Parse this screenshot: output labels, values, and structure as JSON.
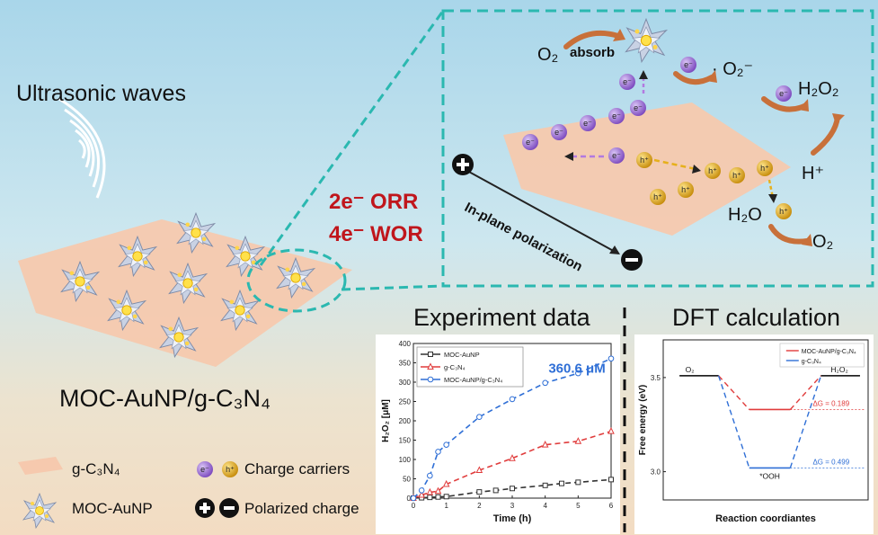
{
  "labels": {
    "ultrasonic": "Ultrasonic waves",
    "orr": "2e⁻ ORR",
    "wor": "4e⁻ WOR",
    "catalyst_name": "MOC-AuNP/g-C₃N₄",
    "o2": "O₂",
    "absorb": "absorb",
    "superoxide": "· O₂⁻",
    "h2o2": "H₂O₂",
    "h_plus": "H⁺",
    "h2o": "H₂O",
    "o2_out": "O₂",
    "polarization": "In-plane polarization",
    "electron": "e⁻",
    "hole": "h⁺"
  },
  "legend": {
    "gcn": "g-C₃N₄",
    "moc": "MOC-AuNP",
    "carriers": "Charge carriers",
    "polarized": "Polarized charge"
  },
  "colors": {
    "accent_red": "#c0161c",
    "teal_dash": "#2bb8b0",
    "electron": "#8a5bc7",
    "hole": "#d19a16",
    "sheet": "#f6c9ae",
    "series_black": "#333333",
    "series_red": "#e03c3c",
    "series_blue": "#2f6fd6"
  },
  "chart_data": [
    {
      "type": "line",
      "title": "Experiment data",
      "xlabel": "Time (h)",
      "ylabel": "H₂O₂ [μM]",
      "xlim": [
        0,
        6
      ],
      "ylim": [
        0,
        400
      ],
      "xticks": [
        0,
        1,
        2,
        3,
        4,
        5,
        6
      ],
      "yticks": [
        0,
        50,
        100,
        150,
        200,
        250,
        300,
        350,
        400
      ],
      "annotation": "360.6 μM",
      "series": [
        {
          "name": "MOC-AuNP",
          "marker": "square",
          "color": "#333333",
          "x": [
            0,
            0.25,
            0.5,
            0.75,
            1,
            2,
            2.5,
            3,
            4,
            4.5,
            5,
            6
          ],
          "y": [
            0,
            1,
            2,
            3,
            4,
            16,
            20,
            25,
            33,
            38,
            41,
            48
          ]
        },
        {
          "name": "g-C₃N₄",
          "marker": "triangle",
          "color": "#e03c3c",
          "x": [
            0,
            0.25,
            0.5,
            0.75,
            1,
            2,
            3,
            4,
            5,
            6
          ],
          "y": [
            0,
            8,
            15,
            18,
            36,
            72,
            103,
            138,
            147,
            173
          ]
        },
        {
          "name": "MOC-AuNP/g-C₃N₄",
          "marker": "circle",
          "color": "#2f6fd6",
          "x": [
            0,
            0.25,
            0.5,
            0.75,
            1,
            2,
            3,
            4,
            5,
            6
          ],
          "y": [
            0,
            20,
            58,
            120,
            138,
            210,
            256,
            298,
            323,
            361
          ]
        }
      ]
    },
    {
      "type": "line",
      "title": "DFT calculation",
      "xlabel": "Reaction coordiantes",
      "ylabel": "Free energy (eV)",
      "ylim": [
        2.85,
        3.7
      ],
      "yticks": [
        3.0,
        3.5
      ],
      "state_labels": [
        "O₂",
        "*OOH",
        "H₂O₂"
      ],
      "annotations": [
        "ΔG = 0.189",
        "ΔG = 0.499"
      ],
      "series": [
        {
          "name": "MOC-AuNP/g-C₃N₄",
          "color": "#e03c3c",
          "levels": [
            3.51,
            3.33,
            3.51
          ]
        },
        {
          "name": "g-C₃N₄",
          "color": "#2f6fd6",
          "levels": [
            3.51,
            3.02,
            3.51
          ]
        }
      ]
    }
  ]
}
